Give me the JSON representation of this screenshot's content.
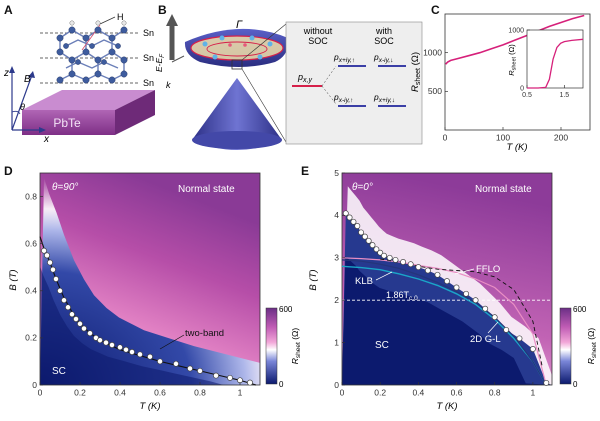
{
  "panel_letters": [
    "A",
    "B",
    "C",
    "D",
    "E"
  ],
  "panelA": {
    "labels": {
      "h": "H",
      "sn1": "Sn",
      "sn2": "Sn",
      "sn3": "Sn",
      "substrate": "PbTe",
      "z": "z",
      "x": "x",
      "b": "B",
      "theta": "θ"
    },
    "colors": {
      "substrate": "#8e3b93",
      "atoms": "#4a6fb0"
    }
  },
  "panelB": {
    "labels": {
      "energy": "E-E",
      "energy_sub": "F",
      "gamma": "Γ",
      "k": "k",
      "without_soc": "without",
      "with_soc": "with",
      "soc": "SOC",
      "soc2": "SOC",
      "pxy": "p",
      "pxy_sub": "x,y",
      "p1": "p",
      "p1_sub": "x+iy,↑",
      "p2": "p",
      "p2_sub": "x-iy,↓",
      "p3": "p",
      "p3_sub": "x-iy,↑",
      "p4": "p",
      "p4_sub": "x+iy,↓"
    },
    "colors": {
      "band": "#3b3fa6",
      "red_level": "#d6204a",
      "blue_level": "#3b3fa6"
    }
  },
  "chart_data": [
    {
      "id": "C",
      "type": "line",
      "xlabel": "T (K)",
      "ylabel": "R_sheet (Ω)",
      "xlim": [
        0,
        250
      ],
      "ylim": [
        0,
        1500
      ],
      "xticks": [
        0,
        100,
        200
      ],
      "yticks": [
        500,
        1000
      ],
      "series": [
        {
          "x": [
            1.2,
            2,
            5,
            10,
            20,
            40,
            60,
            80,
            100,
            120,
            140,
            160,
            180,
            200,
            220,
            240
          ],
          "y": [
            850,
            860,
            880,
            900,
            920,
            960,
            1000,
            1050,
            1100,
            1160,
            1220,
            1280,
            1340,
            1390,
            1440,
            1480
          ]
        }
      ],
      "inset": {
        "xlim": [
          0.5,
          2.0
        ],
        "ylim": [
          0,
          1000
        ],
        "xticks": [
          0.5,
          1.5
        ],
        "yticks": [
          0,
          1000
        ],
        "ylabel": "R_sheet (Ω)",
        "series": [
          {
            "x": [
              0.5,
              0.8,
              1.0,
              1.1,
              1.2,
              1.3,
              1.4,
              1.5,
              1.7,
              2.0
            ],
            "y": [
              0,
              0,
              10,
              150,
              500,
              700,
              770,
              800,
              820,
              840
            ]
          }
        ]
      },
      "color": "#d6207a"
    },
    {
      "id": "D",
      "type": "heatmap",
      "xlabel": "T (K)",
      "ylabel": "B (T)",
      "xlim": [
        0,
        1.1
      ],
      "ylim": [
        0,
        0.9
      ],
      "xticks": [
        0,
        0.2,
        0.4,
        0.6,
        0.8,
        1.0
      ],
      "xtick_labels": [
        "0",
        "0.2",
        "0.4",
        "0.6",
        "0.8",
        "1"
      ],
      "yticks": [
        0,
        0.2,
        0.4,
        0.6,
        0.8
      ],
      "ytick_labels": [
        "0",
        "0.2",
        "0.4",
        "0.6",
        "0.8"
      ],
      "angle_label": "θ=90°",
      "region_labels": {
        "normal": "Normal state",
        "sc": "SC"
      },
      "fit_label": "two-band",
      "colorbar": {
        "min": 0,
        "max": 600,
        "label": "R_sheet (Ω)",
        "ticks": [
          "600",
          "0"
        ]
      },
      "data_points": {
        "x": [
          0.02,
          0.035,
          0.05,
          0.065,
          0.08,
          0.1,
          0.12,
          0.14,
          0.16,
          0.18,
          0.2,
          0.22,
          0.25,
          0.28,
          0.3,
          0.33,
          0.36,
          0.4,
          0.43,
          0.46,
          0.5,
          0.55,
          0.6,
          0.68,
          0.75,
          0.8,
          0.88,
          0.95,
          1.0,
          1.05
        ],
        "y": [
          0.57,
          0.55,
          0.52,
          0.49,
          0.45,
          0.4,
          0.36,
          0.33,
          0.3,
          0.28,
          0.26,
          0.24,
          0.22,
          0.2,
          0.19,
          0.18,
          0.17,
          0.16,
          0.15,
          0.14,
          0.13,
          0.12,
          0.1,
          0.09,
          0.07,
          0.06,
          0.04,
          0.03,
          0.02,
          0.01
        ]
      },
      "fit": {
        "x": [
          0,
          0.02,
          0.05,
          0.08,
          0.12,
          0.16,
          0.2,
          0.25,
          0.3,
          0.35,
          0.4,
          0.5,
          0.6,
          0.7,
          0.8,
          0.9,
          1.0,
          1.08
        ],
        "y": [
          0.63,
          0.58,
          0.52,
          0.45,
          0.37,
          0.31,
          0.26,
          0.22,
          0.19,
          0.17,
          0.15,
          0.125,
          0.1,
          0.08,
          0.06,
          0.04,
          0.02,
          0.0
        ]
      }
    },
    {
      "id": "E",
      "type": "heatmap",
      "xlabel": "T (K)",
      "ylabel": "B (T)",
      "xlim": [
        0,
        1.1
      ],
      "ylim": [
        0,
        5
      ],
      "xticks": [
        0,
        0.2,
        0.4,
        0.6,
        0.8,
        1.0
      ],
      "xtick_labels": [
        "0",
        "0.2",
        "0.4",
        "0.6",
        "0.8",
        "1"
      ],
      "yticks": [
        0,
        1,
        2,
        3,
        4,
        5
      ],
      "ytick_labels": [
        "0",
        "1",
        "2",
        "3",
        "4",
        "5"
      ],
      "angle_label": "θ=0°",
      "region_labels": {
        "normal": "Normal state",
        "sc": "SC"
      },
      "curve_labels": {
        "fflo": "FFLO",
        "klb": "KLB",
        "gl": "2D G-L",
        "tc": "1.86T",
        "tc_sub": "c,0"
      },
      "colorbar": {
        "min": 0,
        "max": 600,
        "label": "R_sheet (Ω)",
        "ticks": [
          "600",
          "0"
        ]
      },
      "data_points": {
        "x": [
          0.02,
          0.04,
          0.06,
          0.08,
          0.1,
          0.12,
          0.14,
          0.16,
          0.18,
          0.2,
          0.22,
          0.25,
          0.28,
          0.32,
          0.36,
          0.4,
          0.45,
          0.5,
          0.55,
          0.6,
          0.65,
          0.7,
          0.75,
          0.8,
          0.86,
          0.93,
          1.0,
          1.07
        ],
        "y": [
          4.05,
          3.95,
          3.85,
          3.75,
          3.6,
          3.5,
          3.4,
          3.3,
          3.2,
          3.12,
          3.05,
          3.0,
          2.95,
          2.9,
          2.85,
          2.78,
          2.7,
          2.6,
          2.45,
          2.3,
          2.15,
          2.0,
          1.8,
          1.6,
          1.3,
          1.1,
          0.85,
          0.05
        ]
      },
      "curves": {
        "fflo": {
          "x": [
            0,
            0.1,
            0.2,
            0.3,
            0.4,
            0.5,
            0.6,
            0.7,
            0.8,
            0.9,
            1.0,
            1.07
          ],
          "y": [
            3.0,
            2.98,
            2.95,
            2.9,
            2.82,
            2.75,
            2.65,
            2.5,
            2.3,
            1.9,
            1.2,
            0.0
          ]
        },
        "klb": {
          "x": [
            0,
            0.1,
            0.2,
            0.3,
            0.4,
            0.5,
            0.6,
            0.7,
            0.8,
            0.9,
            1.0,
            1.07
          ],
          "y": [
            2.8,
            2.77,
            2.72,
            2.62,
            2.5,
            2.35,
            2.15,
            1.9,
            1.55,
            1.1,
            0.55,
            0.0
          ]
        },
        "gl": {
          "x": [
            0,
            0.1,
            0.2,
            0.3,
            0.4,
            0.5,
            0.6,
            0.7,
            0.8,
            0.9,
            1.0,
            1.07
          ],
          "y": [
            2.95,
            2.92,
            2.85,
            2.75,
            2.6,
            2.42,
            2.2,
            1.95,
            1.6,
            1.15,
            0.55,
            0.0
          ]
        },
        "pauli": {
          "x": [
            0,
            0.2,
            0.4,
            0.6,
            0.8,
            1.0,
            1.1
          ],
          "y": [
            2.0,
            2.0,
            2.0,
            2.0,
            2.0,
            2.0,
            2.0
          ]
        },
        "dashed": {
          "x": [
            0.2,
            0.3,
            0.4,
            0.5,
            0.6,
            0.7,
            0.8,
            0.9,
            1.0,
            1.05
          ],
          "y": [
            2.97,
            2.9,
            2.8,
            2.73,
            2.7,
            2.67,
            2.55,
            2.25,
            1.5,
            0.4
          ]
        }
      }
    }
  ]
}
